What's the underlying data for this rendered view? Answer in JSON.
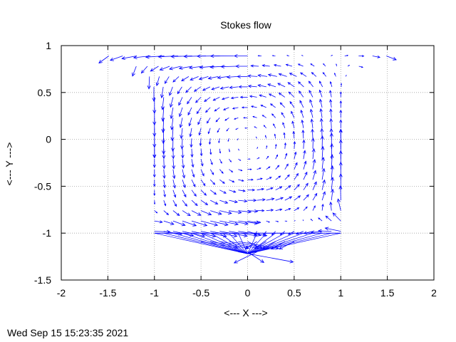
{
  "chart_data": {
    "type": "vector_field",
    "title": "Stokes flow",
    "xlabel": "<--- X --->",
    "ylabel": "<--- Y --->",
    "xlim": [
      -2,
      2
    ],
    "ylim": [
      -1.5,
      1
    ],
    "xticks": [
      "-2",
      "-1.5",
      "-1",
      "-0.5",
      "0",
      "0.5",
      "1",
      "1.5",
      "2"
    ],
    "yticks": [
      "-1.5",
      "-1",
      "-0.5",
      "0",
      "0.5",
      "1"
    ],
    "grid": true,
    "series_color": "#0000ff",
    "domain": "channel region |x| <= 1 for -1 <= y <= 1 plus flared top boundary reaching |x| <= 2 at y = 1, bottom cusp near (0, -1.22)"
  },
  "timestamp": "Wed Sep 15 15:23:35 2021"
}
